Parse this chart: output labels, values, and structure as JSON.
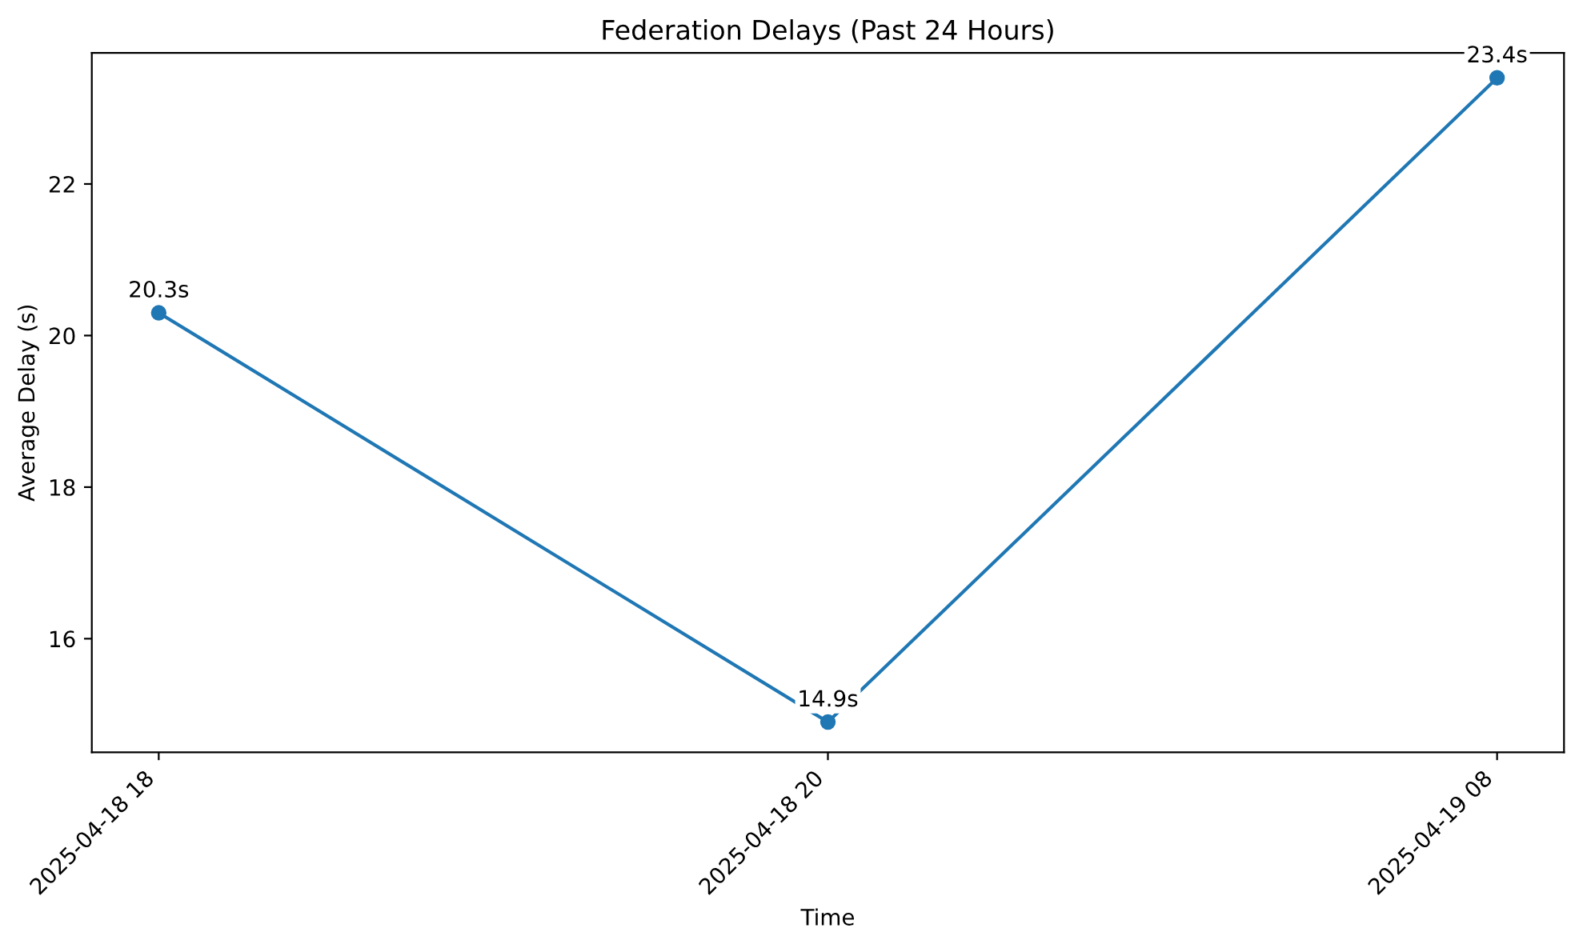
{
  "chart_data": {
    "type": "line",
    "title": "Federation Delays (Past 24 Hours)",
    "xlabel": "Time",
    "ylabel": "Average Delay (s)",
    "categories": [
      "2025-04-18 18",
      "2025-04-18 20",
      "2025-04-19 08"
    ],
    "series": [
      {
        "color": "#1f77b4",
        "values": [
          20.3,
          14.9,
          23.4
        ],
        "value_labels": [
          "20.3s",
          "14.9s",
          "23.4s"
        ]
      }
    ],
    "ylim": [
      14.5,
      23.73
    ],
    "yticks": [
      16,
      18,
      20,
      22
    ],
    "marker": "circle",
    "line_style": "solid",
    "grid": false
  }
}
